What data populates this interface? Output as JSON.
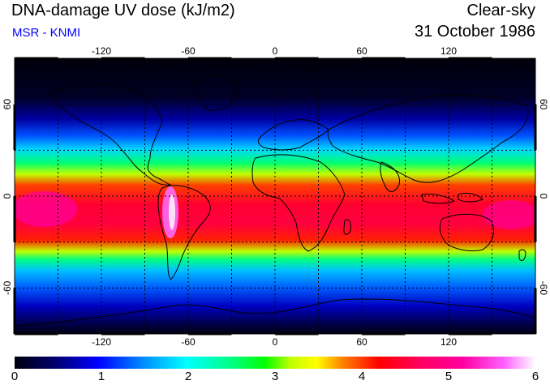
{
  "header": {
    "title": "DNA-damage UV dose (kJ/m2)",
    "subtitle": "MSR - KNMI",
    "condition": "Clear-sky",
    "date": "31 October 1986"
  },
  "map": {
    "lon_ticks": [
      -120,
      -60,
      0,
      60,
      120
    ],
    "lat_ticks": [
      60,
      0,
      -60
    ],
    "lon_range": [
      -180,
      180
    ],
    "lat_range": [
      -90,
      90
    ],
    "grid": "dotted every 30 degrees"
  },
  "colorbar": {
    "min": 0,
    "max": 6,
    "labels": [
      "0",
      "1",
      "2",
      "3",
      "4",
      "5",
      "6"
    ],
    "colors": [
      "#000010",
      "#000070",
      "#0000ff",
      "#0090ff",
      "#00ffff",
      "#00ff80",
      "#00ff00",
      "#c0ff00",
      "#ffff00",
      "#ff8000",
      "#ff0000",
      "#ff0060",
      "#ff00a0",
      "#ff60ff",
      "#ffffff"
    ]
  }
}
